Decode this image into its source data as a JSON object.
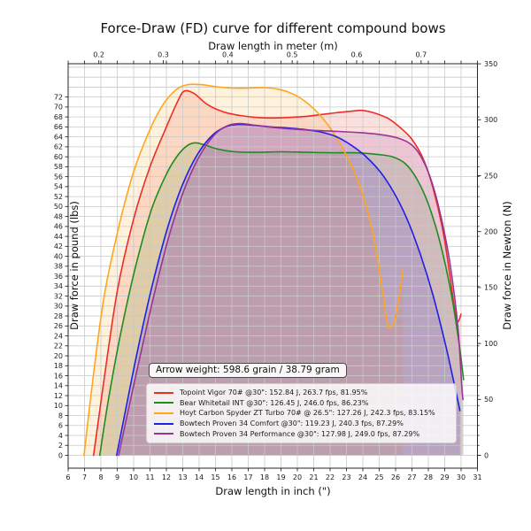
{
  "chart_data": {
    "type": "line",
    "title": "Force-Draw (FD) curve for different compound bows",
    "xlabel_bottom": "Draw length in inch (\")",
    "xlabel_top": "Draw length in meter (m)",
    "ylabel_left": "Draw force in pound (lbs)",
    "ylabel_right": "Draw force in Newton (N)",
    "annotation": "Arrow weight: 598.6 grain / 38.79 gram",
    "xlim": [
      6,
      31
    ],
    "x_ticks_inch": {
      "min": 6,
      "max": 31,
      "step": 1
    },
    "top_ticks_meter": [
      0.2,
      0.3,
      0.4,
      0.5,
      0.6,
      0.7
    ],
    "y_ticks_lbs": {
      "min": 0,
      "max": 72,
      "step": 2
    },
    "y_ticks_newton": {
      "min": 0,
      "max": 350,
      "step": 50
    },
    "grid": true,
    "fill_alpha": 0.15,
    "legend_position": "lower right",
    "series": [
      {
        "name": "topoint-vigor",
        "label": "Topoint Vigor 70# @30\": 152.84 J, 263.7 fps, 81.95%",
        "color": "#ed2d24",
        "points": [
          [
            7.55,
            0
          ],
          [
            8.1,
            13
          ],
          [
            9,
            33
          ],
          [
            10,
            47.5
          ],
          [
            11,
            58
          ],
          [
            12,
            66
          ],
          [
            12.7,
            71.2
          ],
          [
            13.1,
            73.2
          ],
          [
            13.7,
            72.7
          ],
          [
            14.5,
            70.5
          ],
          [
            15.5,
            69
          ],
          [
            16.5,
            68.3
          ],
          [
            17.5,
            67.9
          ],
          [
            18.5,
            67.8
          ],
          [
            19.5,
            67.9
          ],
          [
            20.5,
            68.1
          ],
          [
            21.5,
            68.5
          ],
          [
            22.5,
            68.9
          ],
          [
            23.4,
            69.2
          ],
          [
            24,
            69.3
          ],
          [
            24.8,
            68.7
          ],
          [
            25.6,
            67.6
          ],
          [
            26.3,
            65.8
          ],
          [
            27,
            63.5
          ],
          [
            27.7,
            59.5
          ],
          [
            28.3,
            53.5
          ],
          [
            28.9,
            45
          ],
          [
            29.3,
            36.5
          ],
          [
            29.6,
            29.5
          ],
          [
            29.8,
            26.9
          ],
          [
            30,
            28.4
          ]
        ]
      },
      {
        "name": "bear-whitetail",
        "label": "Bear Whitetail INT @30\": 126.45 J, 246.0 fps, 86.23%",
        "color": "#1e8c1e",
        "points": [
          [
            7.93,
            0
          ],
          [
            8.5,
            12
          ],
          [
            9.3,
            26
          ],
          [
            10.2,
            39
          ],
          [
            11.1,
            49.5
          ],
          [
            12,
            56.5
          ],
          [
            12.7,
            60.3
          ],
          [
            13.3,
            62.3
          ],
          [
            13.8,
            62.8
          ],
          [
            14.4,
            62.3
          ],
          [
            15.2,
            61.5
          ],
          [
            16.2,
            61
          ],
          [
            17.5,
            60.9
          ],
          [
            19,
            61
          ],
          [
            20.5,
            60.9
          ],
          [
            22,
            60.8
          ],
          [
            23.5,
            60.8
          ],
          [
            24.8,
            60.5
          ],
          [
            25.8,
            60
          ],
          [
            26.6,
            58.6
          ],
          [
            27.3,
            55.5
          ],
          [
            28,
            50.5
          ],
          [
            28.7,
            43
          ],
          [
            29.4,
            32.5
          ],
          [
            29.9,
            22
          ],
          [
            30.15,
            15.2
          ]
        ]
      },
      {
        "name": "hoyt-carbon-spyder",
        "label": "Hoyt Carbon Spyder ZT Turbo 70# @ 26.5\": 127.26 J, 242.3 fps, 83.15%",
        "color": "#ffa51e",
        "points": [
          [
            6.97,
            0
          ],
          [
            7.5,
            15
          ],
          [
            8.2,
            32
          ],
          [
            9.1,
            46
          ],
          [
            10,
            57
          ],
          [
            11,
            65.5
          ],
          [
            11.8,
            70.5
          ],
          [
            12.6,
            73.5
          ],
          [
            13.3,
            74.5
          ],
          [
            14.1,
            74.5
          ],
          [
            15,
            74.1
          ],
          [
            16,
            73.8
          ],
          [
            17,
            73.8
          ],
          [
            18,
            73.9
          ],
          [
            18.8,
            73.6
          ],
          [
            19.6,
            72.8
          ],
          [
            20.4,
            71.3
          ],
          [
            21.2,
            69
          ],
          [
            22,
            65.8
          ],
          [
            22.8,
            61.5
          ],
          [
            23.6,
            56
          ],
          [
            24.3,
            49
          ],
          [
            24.8,
            41.5
          ],
          [
            25.2,
            33
          ],
          [
            25.5,
            26.5
          ],
          [
            25.75,
            25.8
          ],
          [
            26,
            28
          ],
          [
            26.25,
            32.5
          ],
          [
            26.45,
            37.3
          ]
        ]
      },
      {
        "name": "bowtech-proven34-comfort",
        "label": "Bowtech Proven 34 Comfort @30\": 119.23 J, 240.3 fps, 87.29%",
        "color": "#1f1fe8",
        "points": [
          [
            8.96,
            0
          ],
          [
            9.5,
            9
          ],
          [
            10.3,
            22
          ],
          [
            11.2,
            35
          ],
          [
            12.1,
            46
          ],
          [
            13,
            54.5
          ],
          [
            13.9,
            60.5
          ],
          [
            14.8,
            64.3
          ],
          [
            15.6,
            66
          ],
          [
            16.4,
            66.5
          ],
          [
            17.4,
            66.3
          ],
          [
            18.4,
            66
          ],
          [
            19.4,
            65.8
          ],
          [
            20.4,
            65.5
          ],
          [
            21.4,
            65
          ],
          [
            22.4,
            64
          ],
          [
            23.3,
            62.3
          ],
          [
            24.2,
            60
          ],
          [
            25.1,
            56.8
          ],
          [
            25.9,
            52.8
          ],
          [
            26.7,
            47.5
          ],
          [
            27.5,
            40.5
          ],
          [
            28.3,
            32
          ],
          [
            29.1,
            21.5
          ],
          [
            29.7,
            12.5
          ],
          [
            29.93,
            9
          ]
        ]
      },
      {
        "name": "bowtech-proven34-performance",
        "label": "Bowtech Proven 34 Performance @30\": 127.98 J, 249.0 fps, 87.29%",
        "color": "#993299",
        "points": [
          [
            9.08,
            0
          ],
          [
            9.6,
            8
          ],
          [
            10.4,
            20
          ],
          [
            11.3,
            33
          ],
          [
            12.2,
            44.5
          ],
          [
            13.1,
            53.5
          ],
          [
            14,
            60
          ],
          [
            14.9,
            64.3
          ],
          [
            15.7,
            66.2
          ],
          [
            16.5,
            66.7
          ],
          [
            17.5,
            66.3
          ],
          [
            18.5,
            65.9
          ],
          [
            19.5,
            65.6
          ],
          [
            21,
            65.3
          ],
          [
            22.5,
            65.1
          ],
          [
            24,
            64.8
          ],
          [
            25.2,
            64.4
          ],
          [
            26.1,
            63.8
          ],
          [
            26.9,
            62.6
          ],
          [
            27.5,
            60.3
          ],
          [
            28.1,
            56
          ],
          [
            28.7,
            49
          ],
          [
            29.3,
            39
          ],
          [
            29.8,
            26
          ],
          [
            30.05,
            13.5
          ],
          [
            30.12,
            11.2
          ]
        ]
      }
    ]
  }
}
